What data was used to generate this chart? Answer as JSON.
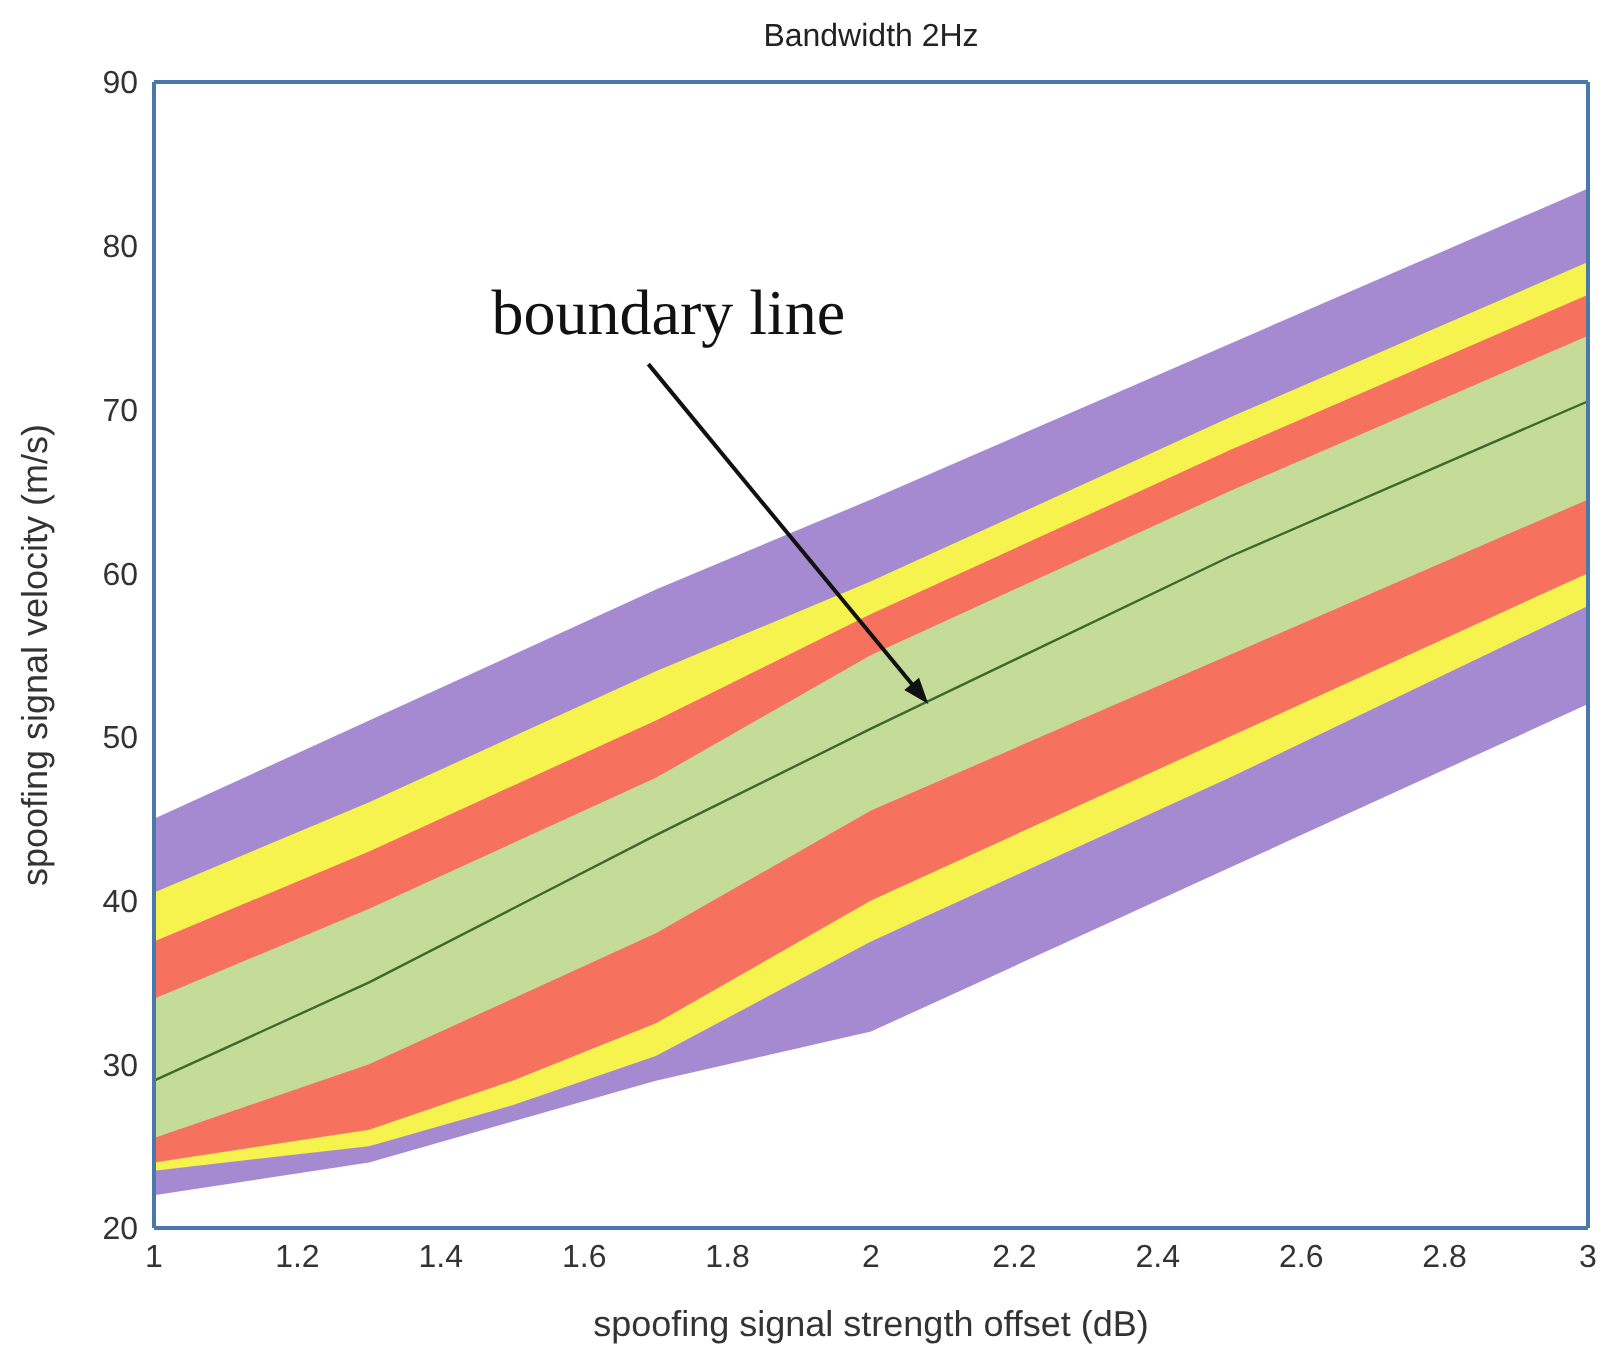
{
  "chart_data": {
    "type": "area",
    "title": "Bandwidth 2Hz",
    "xlabel": "spoofing signal strength offset (dB)",
    "ylabel": "spoofing signal velocity (m/s)",
    "x": [
      1,
      1.3,
      1.5,
      1.7,
      2,
      2.5,
      3
    ],
    "series": [
      {
        "color": "#a58ad2",
        "values": [
          null,
          null,
          null,
          null,
          null,
          null,
          null
        ],
        "upper": [
          45,
          51,
          55,
          59,
          64.5,
          74,
          83.5
        ],
        "lower": [
          22,
          24,
          26.5,
          29,
          32,
          42,
          52
        ]
      },
      {
        "color": "#f6f24e",
        "values": [
          null,
          null,
          null,
          null,
          null,
          null,
          null
        ],
        "upper": [
          40.5,
          46,
          50,
          54,
          59.5,
          69.5,
          79
        ],
        "lower": [
          23.5,
          25,
          27.5,
          30.5,
          37.5,
          47.5,
          58
        ]
      },
      {
        "color": "#f7715f",
        "values": [
          null,
          null,
          null,
          null,
          null,
          null,
          null
        ],
        "upper": [
          37.5,
          43,
          47,
          51,
          57.5,
          67.5,
          77
        ],
        "lower": [
          24,
          26,
          29,
          32.5,
          40,
          50,
          60
        ]
      },
      {
        "color": "#c5dc98",
        "values": [
          null,
          null,
          null,
          null,
          null,
          null,
          null
        ],
        "upper": [
          34,
          39.5,
          43.5,
          47.5,
          55,
          65,
          74.5
        ],
        "lower": [
          25.5,
          30,
          34,
          38,
          45.5,
          55,
          64.5
        ]
      },
      {
        "type": "line",
        "color": "#3c6a2c",
        "values": [
          29,
          35,
          39.5,
          44,
          50.5,
          61,
          70.5
        ]
      }
    ],
    "annotations": [
      {
        "text": "boundary line",
        "x": 2.08,
        "y": 52
      }
    ],
    "xlim": [
      1,
      3
    ],
    "xticks": [
      1,
      1.2,
      1.4,
      1.6,
      1.8,
      2,
      2.2,
      2.4,
      2.6,
      2.8,
      3
    ],
    "ylim": [
      20,
      90
    ],
    "yticks": [
      20,
      30,
      40,
      50,
      60,
      70,
      80,
      90
    ],
    "grid": false,
    "legend": false,
    "marker": "none"
  }
}
